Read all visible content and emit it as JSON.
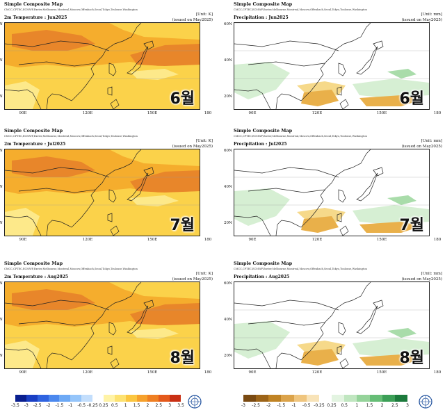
{
  "colors": {
    "temp_strong": "#e8862a",
    "temp_medium": "#f5ad2d",
    "temp_light": "#fbd24a",
    "temp_pale": "#fde98a",
    "precip_dry_strong": "#c98525",
    "precip_dry": "#e9b04a",
    "precip_dry_light": "#f6d98a",
    "precip_wet_light": "#d6efd3",
    "precip_wet": "#a9dcaa",
    "coast": "#222222"
  },
  "common": {
    "header": "Simple Composite Map",
    "models": "CMCC,CPTEC,ECMWF,Exeter,Melbourne,Montreal,Moscow,Offenbach,Seoul,Tokyo,Toulouse,Washington",
    "issued": "(issued on May2025)",
    "lat_labels": [
      "60N",
      "40N",
      "20N"
    ],
    "lon_labels": [
      "90E",
      "120E",
      "150E",
      "180"
    ]
  },
  "panels": [
    {
      "var": "2m Temperature : Jun2025",
      "unit": "[Unit: K]",
      "month": "6월"
    },
    {
      "var": "Precipitation : Jun2025",
      "unit": "[Unit: mm]",
      "month": "6월"
    },
    {
      "var": "2m Temperature : Jul2025",
      "unit": "[Unit: K]",
      "month": "7월"
    },
    {
      "var": "Precipitation : Jul2025",
      "unit": "[Unit: mm]",
      "month": "7월"
    },
    {
      "var": "2m Temperature : Aug2025",
      "unit": "[Unit: K]",
      "month": "8월"
    },
    {
      "var": "Precipitation : Aug2025",
      "unit": "[Unit: mm]",
      "month": "8월"
    }
  ],
  "colorbars": {
    "temperature": {
      "ticks": [
        "-3.5",
        "-3",
        "-2.5",
        "-2",
        "-1.5",
        "-1",
        "-0.5",
        "-0.25",
        "0.25",
        "0.5",
        "1",
        "1.5",
        "2",
        "2.5",
        "3",
        "3.5"
      ],
      "colors": [
        "#0a1f8f",
        "#1a3fc4",
        "#2f63e0",
        "#4b88ee",
        "#6da9f5",
        "#95c5fa",
        "#c3defc",
        "#ffffff",
        "#fff3a6",
        "#fde271",
        "#fbc640",
        "#f6a12c",
        "#ef7f22",
        "#e4591b",
        "#c93014"
      ]
    },
    "precipitation": {
      "ticks": [
        "-3",
        "-2.5",
        "-2",
        "-1.5",
        "-1",
        "-0.5",
        "-0.25",
        "0.25",
        "0.5",
        "1",
        "1.5",
        "2",
        "2.5",
        "3"
      ],
      "colors": [
        "#7a4a12",
        "#9c6418",
        "#c08324",
        "#dba34a",
        "#efc57e",
        "#f8e3b8",
        "#ffffff",
        "#e3f4e1",
        "#c0e6c0",
        "#95d39a",
        "#66bd76",
        "#3c9f57",
        "#1c7a3c"
      ]
    }
  }
}
